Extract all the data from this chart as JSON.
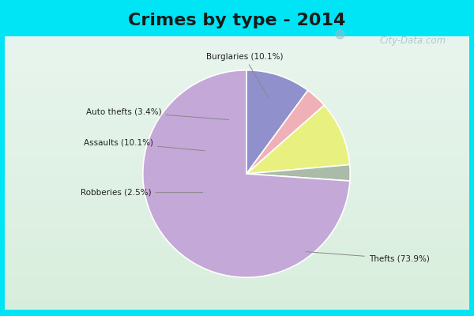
{
  "title": "Crimes by type - 2014",
  "labels": [
    "Thefts",
    "Burglaries",
    "Auto thefts",
    "Assaults",
    "Robberies"
  ],
  "values": [
    73.9,
    10.1,
    3.4,
    10.1,
    2.5
  ],
  "colors": [
    "#c4a8d8",
    "#9090cc",
    "#f0b0b8",
    "#e8f080",
    "#aabba8"
  ],
  "label_texts": [
    "Thefts (73.9%)",
    "Burglaries (10.1%)",
    "Auto thefts (3.4%)",
    "Assaults (10.1%)",
    "Robberies (2.5%)"
  ],
  "background_top": "#00e5f5",
  "background_main_top": "#e8f8f0",
  "background_main_bottom": "#d0eedd",
  "title_fontsize": 16,
  "title_color": "#1a1a1a",
  "label_color": "#222222",
  "watermark_text": "City-Data.com",
  "startangle": 90,
  "top_bar_height": 0.115
}
